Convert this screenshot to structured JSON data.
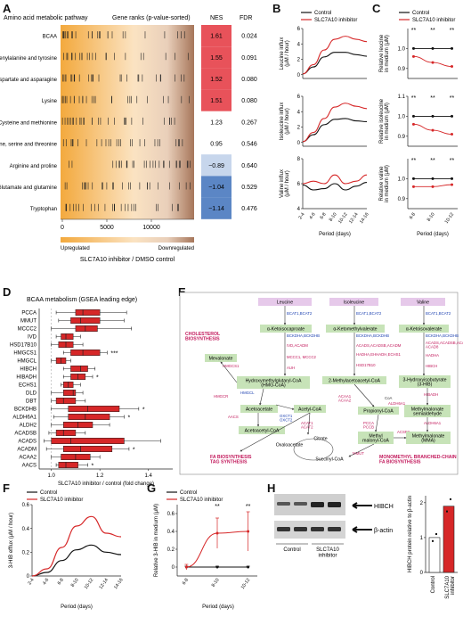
{
  "panels": {
    "A": "A",
    "B": "B",
    "C": "C",
    "D": "D",
    "E": "E",
    "F": "F",
    "G": "G",
    "H": "H"
  },
  "panelA": {
    "header_pathway": "Amino acid metabolic pathway",
    "header_ranks": "Gene ranks (p-value-sorted)",
    "header_nes": "NES",
    "header_fdr": "FDR",
    "x_ticks": [
      "0",
      "5000",
      "10000"
    ],
    "upregulated": "Upregulated",
    "downregulated": "Downregulated",
    "xlabel": "SLC7A10 inhibitor / DMSO control",
    "colors": {
      "up": "#f3a93d",
      "down": "#a6765a",
      "pos_high": "#e8525a",
      "pos_low": "#f4a6a2",
      "neutral": "#ffffff",
      "neg_low": "#c7d6ec",
      "neg_high": "#5b86c5"
    }
  },
  "chart_data": [
    {
      "type": "table",
      "title": "Amino acid metabolic pathway",
      "rows": [
        {
          "pathway": "BCAA",
          "nes": "1.61",
          "fdr": "0.024"
        },
        {
          "pathway": "Phenylalanine and tyrosine",
          "nes": "1.55",
          "fdr": "0.091"
        },
        {
          "pathway": "Aspartate and asparagine",
          "nes": "1.52",
          "fdr": "0.080"
        },
        {
          "pathway": "Lysine",
          "nes": "1.51",
          "fdr": "0.080"
        },
        {
          "pathway": "Cysteine and methionine",
          "nes": "1.23",
          "fdr": "0.267"
        },
        {
          "pathway": "Glycine, serine and threonine",
          "nes": "0.95",
          "fdr": "0.546"
        },
        {
          "pathway": "Arginine and proline",
          "nes": "−0.89",
          "fdr": "0.640"
        },
        {
          "pathway": "Glutamate and glutamine",
          "nes": "−1.04",
          "fdr": "0.529"
        },
        {
          "pathway": "Tryptophan",
          "nes": "−1.14",
          "fdr": "0.476"
        }
      ]
    },
    {
      "type": "line",
      "panel": "B",
      "legend": [
        "Control",
        "SLC7A10 inhibitor"
      ],
      "x": [
        "2-4",
        "4-6",
        "6-8",
        "8-10",
        "10-12",
        "12-14",
        "14-16"
      ],
      "subplots": [
        {
          "ylabel": "Leucine influx\n(μM / hour)",
          "ylim": [
            -0.5,
            6
          ],
          "yticks": [
            "0",
            "2",
            "4",
            "6"
          ],
          "series": [
            {
              "name": "Control",
              "values": [
                0.1,
                1.0,
                2.3,
                2.9,
                2.9,
                2.6,
                2.4
              ]
            },
            {
              "name": "SLC7A10 inhibitor",
              "values": [
                0.1,
                1.3,
                3.2,
                4.6,
                5.0,
                4.6,
                4.3
              ]
            }
          ]
        },
        {
          "ylabel": "Isoleucine influx\n(μM / hour)",
          "ylim": [
            -0.5,
            6
          ],
          "yticks": [
            "0",
            "2",
            "4",
            "6"
          ],
          "series": [
            {
              "name": "Control",
              "values": [
                0.1,
                1.0,
                2.3,
                3.0,
                3.1,
                2.8,
                2.7
              ]
            },
            {
              "name": "SLC7A10 inhibitor",
              "values": [
                0.1,
                1.3,
                3.1,
                4.6,
                5.1,
                4.7,
                4.4
              ]
            }
          ]
        },
        {
          "ylabel": "Valine influx\n(μM / hour)",
          "ylim": [
            4,
            8
          ],
          "yticks": [
            "4",
            "6",
            "8"
          ],
          "series": [
            {
              "name": "Control",
              "values": [
                5.9,
                5.5,
                5.6,
                6.0,
                5.5,
                5.8,
                6.1
              ]
            },
            {
              "name": "SLC7A10 inhibitor",
              "values": [
                6.0,
                6.2,
                6.0,
                6.7,
                6.0,
                6.2,
                6.7
              ]
            }
          ]
        }
      ],
      "xlabel": "Period (days)"
    },
    {
      "type": "line",
      "panel": "C",
      "legend": [
        "Control",
        "SLC7A10 inhibitor"
      ],
      "x": [
        "6-8",
        "8-10",
        "10-12"
      ],
      "subplots": [
        {
          "ylabel": "Relative leucine\nin medium (μM)",
          "ylim": [
            0.85,
            1.1
          ],
          "yticks": [
            "0.9",
            "1.0"
          ],
          "sig": [
            "**",
            "**",
            "**"
          ],
          "series": [
            {
              "name": "Control",
              "values": [
                1.0,
                1.0,
                1.0
              ]
            },
            {
              "name": "SLC7A10 inhibitor",
              "values": [
                0.96,
                0.93,
                0.91
              ]
            }
          ]
        },
        {
          "ylabel": "Relative isoleucine\nin medium (μM)",
          "ylim": [
            0.85,
            1.1
          ],
          "yticks": [
            "0.9",
            "1.0",
            "1.1"
          ],
          "sig": [
            "**",
            "**",
            "**"
          ],
          "series": [
            {
              "name": "Control",
              "values": [
                1.0,
                1.0,
                1.0
              ]
            },
            {
              "name": "SLC7A10 inhibitor",
              "values": [
                0.96,
                0.93,
                0.91
              ]
            }
          ]
        },
        {
          "ylabel": "Relative valine\nin medium (μM)",
          "ylim": [
            0.85,
            1.1
          ],
          "yticks": [
            "0.9",
            "1.0"
          ],
          "sig": [
            "**",
            "**",
            "**"
          ],
          "series": [
            {
              "name": "Control",
              "values": [
                1.0,
                1.0,
                1.0
              ]
            },
            {
              "name": "SLC7A10 inhibitor",
              "values": [
                0.96,
                0.96,
                0.97
              ]
            }
          ]
        }
      ],
      "xlabel": "Period (days)"
    },
    {
      "type": "bar",
      "panel": "D",
      "title": "BCAA metabolism (GSEA leading edge)",
      "xlabel": "SLC7A10 inhibitor / control (fold change)",
      "xlim": [
        0.95,
        1.5
      ],
      "xticks": [
        "1.0",
        "1.2",
        "1.4"
      ],
      "boxes": [
        {
          "gene": "PCCA",
          "wl": 1.02,
          "q1": 1.1,
          "med": 1.13,
          "q3": 1.2,
          "wh": 1.31,
          "sig": ""
        },
        {
          "gene": "MMUT",
          "wl": 1.03,
          "q1": 1.08,
          "med": 1.12,
          "q3": 1.2,
          "wh": 1.3,
          "sig": ""
        },
        {
          "gene": "MCCC2",
          "wl": 1.0,
          "q1": 1.1,
          "med": 1.14,
          "q3": 1.19,
          "wh": 1.33,
          "sig": ""
        },
        {
          "gene": "IVD",
          "wl": 1.02,
          "q1": 1.04,
          "med": 1.06,
          "q3": 1.09,
          "wh": 1.12,
          "sig": ""
        },
        {
          "gene": "HSD17B10",
          "wl": 1.0,
          "q1": 1.03,
          "med": 1.06,
          "q3": 1.09,
          "wh": 1.13,
          "sig": ""
        },
        {
          "gene": "HMGCS1",
          "wl": 1.05,
          "q1": 1.08,
          "med": 1.13,
          "q3": 1.2,
          "wh": 1.23,
          "sig": "***"
        },
        {
          "gene": "HMGCL",
          "wl": 1.0,
          "q1": 1.02,
          "med": 1.04,
          "q3": 1.06,
          "wh": 1.08,
          "sig": ""
        },
        {
          "gene": "HIBCH",
          "wl": 1.05,
          "q1": 1.08,
          "med": 1.12,
          "q3": 1.15,
          "wh": 1.18,
          "sig": ""
        },
        {
          "gene": "HIBADH",
          "wl": 1.05,
          "q1": 1.08,
          "med": 1.11,
          "q3": 1.14,
          "wh": 1.17,
          "sig": "*"
        },
        {
          "gene": "ECHS1",
          "wl": 1.04,
          "q1": 1.05,
          "med": 1.07,
          "q3": 1.09,
          "wh": 1.12,
          "sig": ""
        },
        {
          "gene": "DLD",
          "wl": 1.0,
          "q1": 1.05,
          "med": 1.09,
          "q3": 1.1,
          "wh": 1.13,
          "sig": ""
        },
        {
          "gene": "DBT",
          "wl": 1.0,
          "q1": 1.02,
          "med": 1.05,
          "q3": 1.1,
          "wh": 1.14,
          "sig": ""
        },
        {
          "gene": "BCKDHB",
          "wl": 1.0,
          "q1": 1.07,
          "med": 1.15,
          "q3": 1.28,
          "wh": 1.36,
          "sig": "*"
        },
        {
          "gene": "ALDH6A1",
          "wl": 1.01,
          "q1": 1.07,
          "med": 1.14,
          "q3": 1.24,
          "wh": 1.3,
          "sig": "*"
        },
        {
          "gene": "ALDH2",
          "wl": 1.0,
          "q1": 1.05,
          "med": 1.11,
          "q3": 1.17,
          "wh": 1.24,
          "sig": ""
        },
        {
          "gene": "ACADSB",
          "wl": 0.99,
          "q1": 1.02,
          "med": 1.05,
          "q3": 1.1,
          "wh": 1.14,
          "sig": ""
        },
        {
          "gene": "ACADS",
          "wl": 0.97,
          "q1": 1.0,
          "med": 1.08,
          "q3": 1.3,
          "wh": 1.45,
          "sig": ""
        },
        {
          "gene": "ACADM",
          "wl": 0.98,
          "q1": 1.05,
          "med": 1.12,
          "q3": 1.25,
          "wh": 1.32,
          "sig": "*"
        },
        {
          "gene": "ACAA2",
          "wl": 1.0,
          "q1": 1.04,
          "med": 1.1,
          "q3": 1.16,
          "wh": 1.2,
          "sig": ""
        },
        {
          "gene": "AACS",
          "wl": 1.02,
          "q1": 1.03,
          "med": 1.06,
          "q3": 1.11,
          "wh": 1.15,
          "sig": "*"
        }
      ]
    },
    {
      "type": "line",
      "panel": "F",
      "legend": [
        "Control",
        "SLC7A10 inhibitor"
      ],
      "ylabel": "3-HIB efflux (μM / hour)",
      "xlabel": "Period (days)",
      "x": [
        "2-4",
        "4-6",
        "6-8",
        "8-10",
        "10-12",
        "12-14",
        "14-16"
      ],
      "ylim": [
        0,
        0.6
      ],
      "yticks": [
        "0",
        "0.2",
        "0.4",
        "0.6"
      ],
      "series": [
        {
          "name": "Control",
          "values": [
            0.0,
            0.03,
            0.13,
            0.22,
            0.26,
            0.2,
            0.18
          ]
        },
        {
          "name": "SLC7A10 inhibitor",
          "values": [
            0.0,
            0.06,
            0.24,
            0.42,
            0.5,
            0.36,
            0.33
          ]
        }
      ]
    },
    {
      "type": "line",
      "panel": "G",
      "legend": [
        "Control",
        "SLC7A10 inhibitor"
      ],
      "ylabel": "Relative 3-HIB in medium (μM)",
      "xlabel": "Period (days)",
      "x": [
        "6-8",
        "8-10",
        "10-12"
      ],
      "ylim": [
        -0.1,
        0.7
      ],
      "yticks": [
        "0",
        "0.2",
        "0.4",
        "0.6"
      ],
      "sig": [
        "",
        "**",
        "**"
      ],
      "series": [
        {
          "name": "Control",
          "values": [
            0.0,
            0.0,
            0.0
          ],
          "err": [
            0.01,
            0.01,
            0.01
          ]
        },
        {
          "name": "SLC7A10 inhibitor",
          "values": [
            0.0,
            0.38,
            0.4
          ],
          "err": [
            0.03,
            0.17,
            0.22
          ]
        }
      ]
    },
    {
      "type": "bar",
      "panel": "H",
      "ylabel": "HIBCH protein relative to β-actin",
      "categories": [
        "Control",
        "SLC7A10\ninhibitor"
      ],
      "values": [
        1.0,
        1.9
      ],
      "points": [
        [
          0.9,
          1.1
        ],
        [
          1.75,
          2.1
        ]
      ],
      "ylim": [
        0,
        2.2
      ],
      "yticks": [
        "0",
        "1",
        "2"
      ]
    }
  ],
  "panelE": {
    "leucine": "Leucine",
    "isoleucine": "Isoleucine",
    "valine": "Valine",
    "kic": "α-Ketoisocaproate",
    "kmv": "α-Ketomethylvalerate",
    "kiv": "α-Ketoisovalerate",
    "bcat": "BCAT1,BCAT2",
    "bckd": "BCKDHA,BCKDHB",
    "cholesterol": "CHOLESTEROL\nBIOSYNTHESIS",
    "mevalonate": "Mevalonate",
    "ivd": "IVD,ACADM",
    "mccc": "MCCC1, MCCC2",
    "auh": "AUH",
    "hmgcoa": "Hydroxymethylglutaryl-CoA\n(HMG-CoA)",
    "hmgcl": "HMGCL",
    "hmgcs": "HMGCS1",
    "hmgcr": "HMGCR",
    "acads": "ACADS,ACADSB,ACADM",
    "hadha": "HADHA,EHHADH,ECHS1",
    "hsd": "HSD17B10",
    "mbcoa": "2-Methylacetoacetyl-CoA",
    "acaa1": "ACAA1\nACAA2",
    "acad_v": "ACADS,ACADSB,ACADM\nACAD8",
    "hadha_v": "HADHA",
    "hibch": "HIBCH",
    "hib": "3-Hydroxyisobutyrate\n(3-HIB)",
    "hibadh": "HIBADH",
    "acetoacetate": "Acetoacetate",
    "oxct": "OXCT1\nOXCT2",
    "aacs": "AACS",
    "acetoacetylcoa": "Acetoacetyl-CoA",
    "acat": "ACAT1\nACAT2",
    "acetylcoa": "Acetyl-CoA",
    "propionylcoa": "Propionyl-CoA",
    "aldh_p": "ALDH6A1",
    "msa": "Methylmalonate\nsemialdehyde",
    "aldh7": "ALDH6A1",
    "pcc": "PCCA\nPCCB",
    "mmcoa": "Methyl\nmalonyl-CoA",
    "acsf3": "ACSF3",
    "mma": "Methylmalonate\n(MMA)",
    "mmut": "MMUT",
    "citrate": "Citrate",
    "oxaloacetate": "Oxaloacetate",
    "succinylcoa": "Succinyl-CoA",
    "fa": "FA BIOSYNTHESIS\nTAG SYNTHESIS",
    "mono": "MONOMETHYL BRANCHED-CHAIN\nFA BIOSYNTHESIS",
    "coa": "CoA",
    "acsf": "ACSF3"
  },
  "panelH": {
    "hibch_label": "HIBCH",
    "actin_label": "β-actin",
    "lane_control": "Control",
    "lane_inhib": "SLC7A10\ninhibitor"
  }
}
